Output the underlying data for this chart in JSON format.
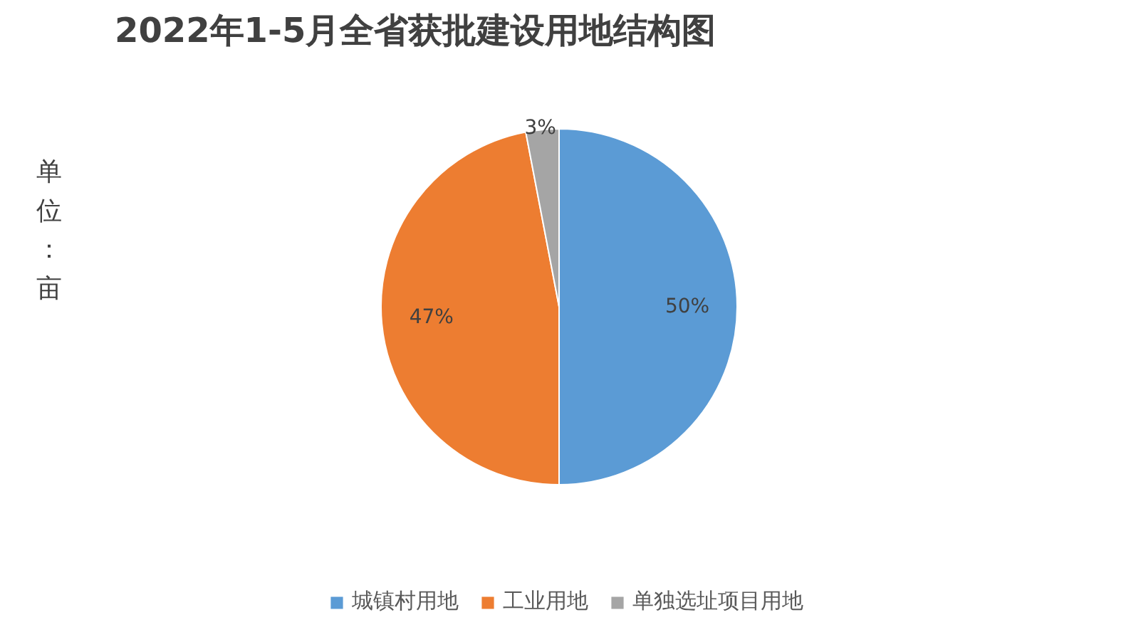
{
  "chart_data": {
    "type": "pie",
    "title": "2022年1-5月全省获批建设用地结构图",
    "categories": [
      "城镇村用地",
      "工业用地",
      "单独选址项目用地"
    ],
    "values": [
      50,
      47,
      3
    ],
    "colors": [
      "#5b9bd5",
      "#ed7d31",
      "#a5a5a5"
    ],
    "value_labels": [
      "50%",
      "47%",
      "3%"
    ],
    "annotations": [
      "单位：亩"
    ],
    "legend": "bottom"
  }
}
